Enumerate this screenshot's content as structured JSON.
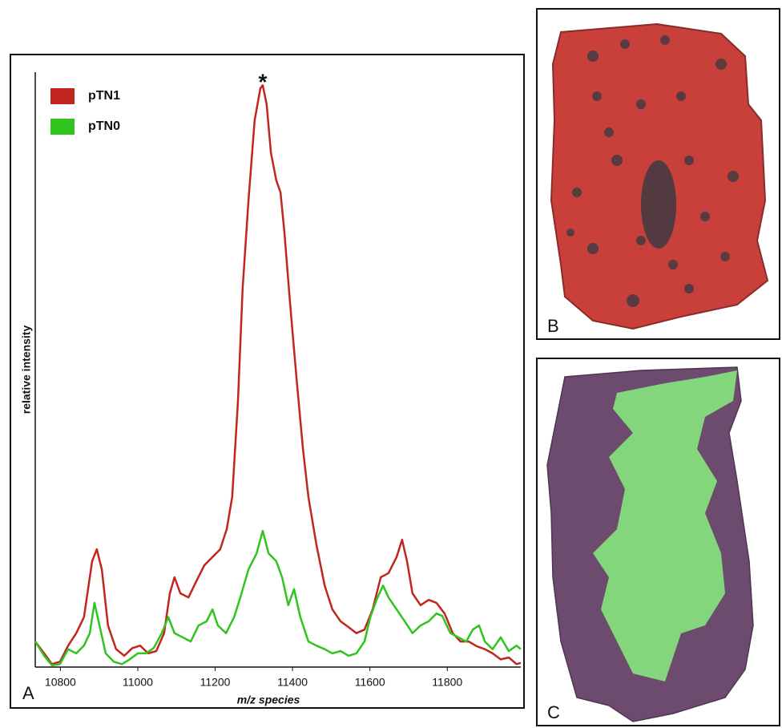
{
  "chart_data": {
    "type": "line",
    "panel_label": "A",
    "xlabel": "m/z species",
    "ylabel": "relative intensity",
    "xlim": [
      10735,
      11990
    ],
    "ylim": [
      0,
      100
    ],
    "xticks": [
      10800,
      11000,
      11200,
      11400,
      11600,
      11800
    ],
    "annotations": [
      {
        "text": "*",
        "x": 11323
      }
    ],
    "series": [
      {
        "name": "pTN1",
        "color": "#c0261e",
        "x": [
          10735,
          10758,
          10778,
          10799,
          10820,
          10841,
          10861,
          10882,
          10894,
          10907,
          10923,
          10944,
          10965,
          10986,
          11006,
          11027,
          11048,
          11068,
          11083,
          11095,
          11110,
          11131,
          11151,
          11172,
          11193,
          11213,
          11230,
          11244,
          11259,
          11271,
          11286,
          11302,
          11317,
          11323,
          11333,
          11344,
          11358,
          11369,
          11379,
          11394,
          11410,
          11427,
          11441,
          11462,
          11483,
          11503,
          11524,
          11545,
          11565,
          11586,
          11607,
          11628,
          11648,
          11669,
          11683,
          11696,
          11710,
          11731,
          11752,
          11772,
          11793,
          11814,
          11834,
          11855,
          11876,
          11897,
          11917,
          11938,
          11959,
          11979,
          11990
        ],
        "values": [
          4.3,
          2.3,
          0.5,
          0.9,
          3.6,
          5.7,
          8.4,
          17.8,
          19.8,
          16.4,
          7.0,
          3.0,
          1.9,
          3.2,
          3.6,
          2.3,
          2.7,
          5.7,
          12.4,
          15.1,
          12.4,
          11.7,
          14.4,
          17.1,
          18.5,
          19.8,
          23.2,
          28.6,
          44.7,
          63.6,
          78.4,
          91.9,
          97.3,
          97.8,
          94.6,
          86.5,
          81.8,
          79.8,
          73.0,
          60.9,
          48.8,
          36.7,
          28.6,
          20.5,
          13.7,
          9.7,
          7.7,
          6.7,
          5.7,
          6.3,
          9.7,
          15.1,
          15.8,
          18.5,
          21.4,
          17.8,
          12.4,
          10.4,
          11.3,
          10.8,
          9.0,
          5.7,
          4.3,
          4.3,
          3.5,
          3.0,
          2.3,
          1.3,
          1.6,
          0.5,
          0.7
        ]
      },
      {
        "name": "pTN0",
        "color": "#2fc41e",
        "x": [
          10735,
          10758,
          10778,
          10799,
          10820,
          10841,
          10861,
          10876,
          10888,
          10901,
          10917,
          10938,
          10959,
          10979,
          11000,
          11021,
          11041,
          11062,
          11079,
          11095,
          11116,
          11137,
          11157,
          11178,
          11193,
          11207,
          11228,
          11249,
          11265,
          11286,
          11307,
          11323,
          11338,
          11358,
          11373,
          11389,
          11404,
          11420,
          11441,
          11462,
          11483,
          11503,
          11524,
          11545,
          11565,
          11586,
          11601,
          11617,
          11634,
          11648,
          11669,
          11690,
          11710,
          11731,
          11752,
          11772,
          11787,
          11808,
          11828,
          11849,
          11866,
          11882,
          11897,
          11917,
          11938,
          11959,
          11979,
          11990
        ],
        "values": [
          4.3,
          1.9,
          0.3,
          0.5,
          3.0,
          2.3,
          3.6,
          5.7,
          10.8,
          7.0,
          2.3,
          0.9,
          0.5,
          1.3,
          2.3,
          2.3,
          3.2,
          5.7,
          8.4,
          5.7,
          5.0,
          4.3,
          7.0,
          7.7,
          9.7,
          7.0,
          5.7,
          8.4,
          11.7,
          16.4,
          19.1,
          22.9,
          19.1,
          17.8,
          15.1,
          10.4,
          13.1,
          8.4,
          4.3,
          3.6,
          3.0,
          2.3,
          2.7,
          1.9,
          2.3,
          4.3,
          8.4,
          11.3,
          13.7,
          11.7,
          9.7,
          7.7,
          5.7,
          7.0,
          7.7,
          9.0,
          8.6,
          5.7,
          5.0,
          4.3,
          6.3,
          7.0,
          4.3,
          3.0,
          5.0,
          2.7,
          3.6,
          3.0
        ]
      }
    ]
  },
  "panels": [
    {
      "label": "B"
    },
    {
      "label": "C"
    }
  ]
}
